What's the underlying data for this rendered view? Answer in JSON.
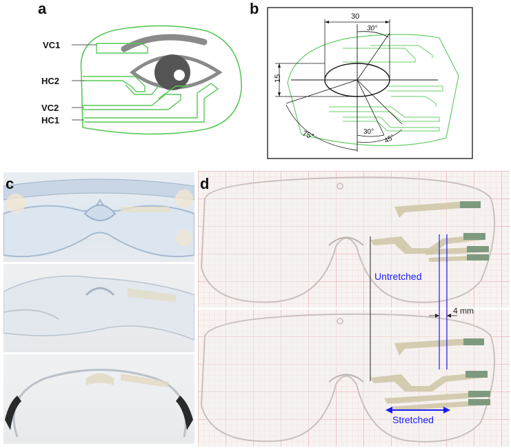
{
  "panels": {
    "a": {
      "letter": "a",
      "labels": [
        "VC1",
        "HC2",
        "VC2",
        "HC1"
      ]
    },
    "b": {
      "letter": "b",
      "dims": {
        "width": "30",
        "height": "15",
        "angle_top": "30°",
        "angle_left": "75°",
        "angle_bottom_1": "30°",
        "angle_bottom_2": "45°"
      }
    },
    "c": {
      "letter": "c"
    },
    "d": {
      "letter": "d",
      "untretched": "Untretched",
      "stretched": "Stretched",
      "gap": "4 mm"
    }
  },
  "colors": {
    "trace_green": "#55c855",
    "annotation_blue": "#1a1aff",
    "lens_gray": "#888888"
  }
}
